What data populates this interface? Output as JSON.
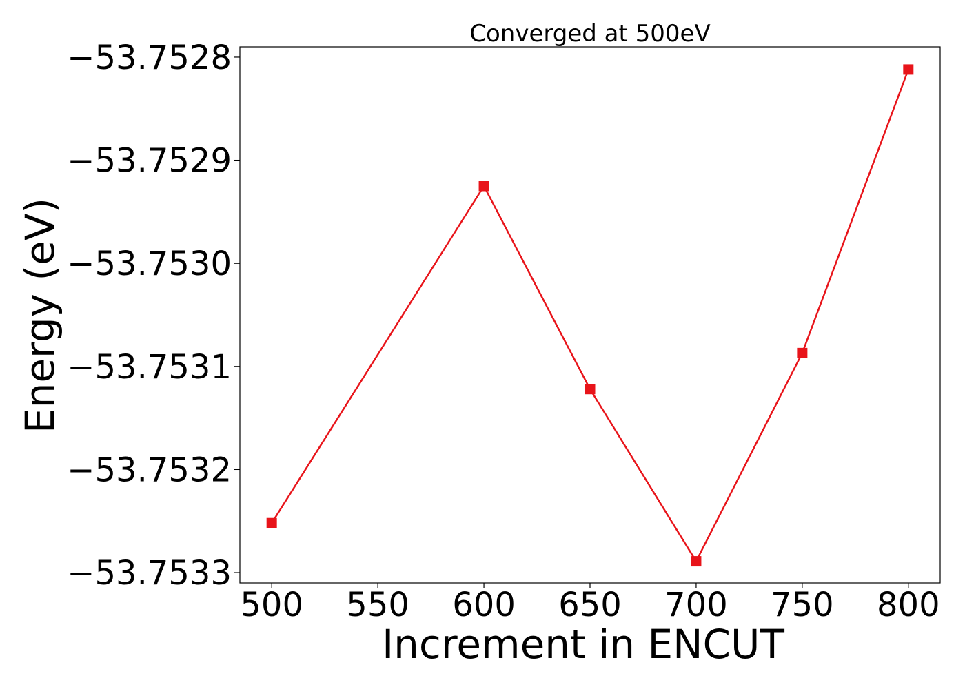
{
  "chart_data": {
    "type": "line",
    "title": "Converged at 500eV",
    "xlabel": "Increment in ENCUT",
    "ylabel": "Energy (eV)",
    "x": [
      500,
      600,
      650,
      700,
      750,
      800
    ],
    "series": [
      {
        "values": [
          -53.753252,
          -53.752925,
          -53.753122,
          -53.753289,
          -53.753087,
          -53.752812
        ],
        "color": "#e8141a",
        "marker": "square"
      }
    ],
    "xticks": [
      500,
      550,
      600,
      650,
      700,
      750,
      800
    ],
    "xtick_labels": [
      "500",
      "550",
      "600",
      "650",
      "700",
      "750",
      "800"
    ],
    "yticks": [
      -53.7533,
      -53.7532,
      -53.7531,
      -53.753,
      -53.7529,
      -53.7528
    ],
    "ytick_labels": [
      "−53.7533",
      "−53.7532",
      "−53.7531",
      "−53.7530",
      "−53.7529",
      "−53.7528"
    ],
    "xlim": [
      485,
      815
    ],
    "ylim": [
      -53.75331,
      -53.75279
    ],
    "grid": false,
    "legend": false
  }
}
